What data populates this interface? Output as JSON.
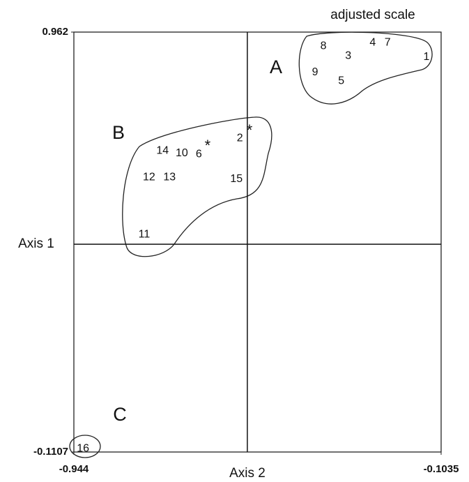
{
  "chart_data": {
    "type": "scatter",
    "title": "adjusted scale",
    "x_label": "Axis 2",
    "y_label": "Axis 1",
    "xlim": [
      -0.944,
      -0.1035
    ],
    "ylim": [
      -0.1107,
      0.962
    ],
    "xticks": [
      -0.944,
      -0.1035
    ],
    "yticks": [
      -0.1107,
      0.962
    ],
    "axis_cross": {
      "x": -0.547,
      "y": 0.42
    },
    "groups": [
      "A",
      "B",
      "C"
    ],
    "points": {
      "labels": [
        "1",
        "3",
        "4",
        "7",
        "8",
        "9",
        "5",
        "2",
        "14",
        "10",
        "6",
        "12",
        "13",
        "15",
        "11",
        "16"
      ],
      "x": [
        -0.137,
        -0.316,
        -0.26,
        -0.226,
        -0.373,
        -0.392,
        -0.332,
        -0.564,
        -0.741,
        -0.697,
        -0.658,
        -0.772,
        -0.725,
        -0.572,
        -0.783,
        -0.923
      ],
      "y": [
        0.898,
        0.901,
        0.935,
        0.935,
        0.926,
        0.859,
        0.837,
        0.691,
        0.659,
        0.652,
        0.65,
        0.591,
        0.591,
        0.586,
        0.445,
        -0.102
      ]
    },
    "markers": {
      "labels": [
        "*",
        "*"
      ],
      "x": [
        -0.638,
        -0.542
      ],
      "y": [
        0.677,
        0.716
      ]
    }
  }
}
